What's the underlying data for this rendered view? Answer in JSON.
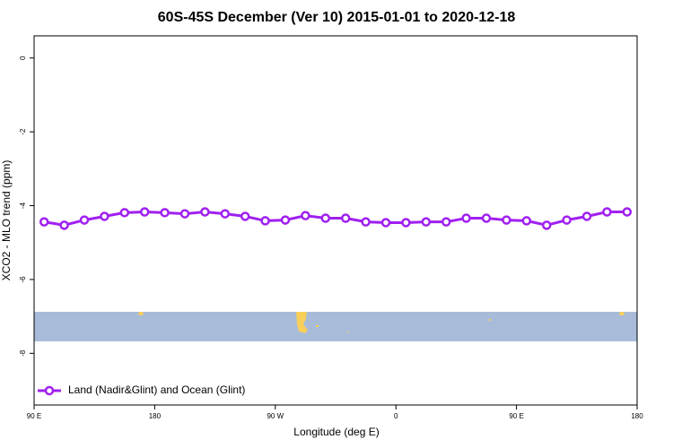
{
  "chart_data": {
    "type": "line",
    "title": "60S-45S December (Ver 10)   2015-01-01 to 2020-12-18",
    "x_label": "Longitude (deg E)",
    "y_label": "XCO2 - MLO trend (ppm)",
    "x": [
      97.5,
      112.5,
      127.5,
      142.5,
      157.5,
      172.5,
      187.5,
      202.5,
      217.5,
      232.5,
      247.5,
      262.5,
      277.5,
      292.5,
      307.5,
      322.5,
      337.5,
      352.5,
      367.5,
      382.5,
      397.5,
      412.5,
      427.5,
      442.5,
      457.5,
      472.5,
      487.5,
      502.5,
      517.5,
      532.5
    ],
    "series": [
      {
        "name": "Land (Nadir&Glint) and Ocean (Glint)",
        "color": "#a020f0",
        "values": [
          -4.44,
          -4.53,
          -4.39,
          -4.29,
          -4.19,
          -4.17,
          -4.19,
          -4.22,
          -4.17,
          -4.22,
          -4.29,
          -4.41,
          -4.39,
          -4.27,
          -4.34,
          -4.34,
          -4.44,
          -4.46,
          -4.46,
          -4.44,
          -4.44,
          -4.34,
          -4.34,
          -4.39,
          -4.41,
          -4.53,
          -4.39,
          -4.29,
          -4.17,
          -4.17
        ]
      }
    ],
    "xlim": [
      90,
      540
    ],
    "xticks": [
      {
        "value": 90,
        "label": "90 E"
      },
      180,
      {
        "value": 270,
        "label": "90 W"
      },
      {
        "value": 360,
        "label": "0"
      },
      {
        "value": 450,
        "label": "90 E"
      },
      {
        "value": 540,
        "label": "180"
      }
    ],
    "ylim": [
      -9.4,
      0.6
    ],
    "yticks": [
      0,
      -2,
      -4,
      -6,
      -8
    ],
    "legend_position": "bottom-left"
  }
}
